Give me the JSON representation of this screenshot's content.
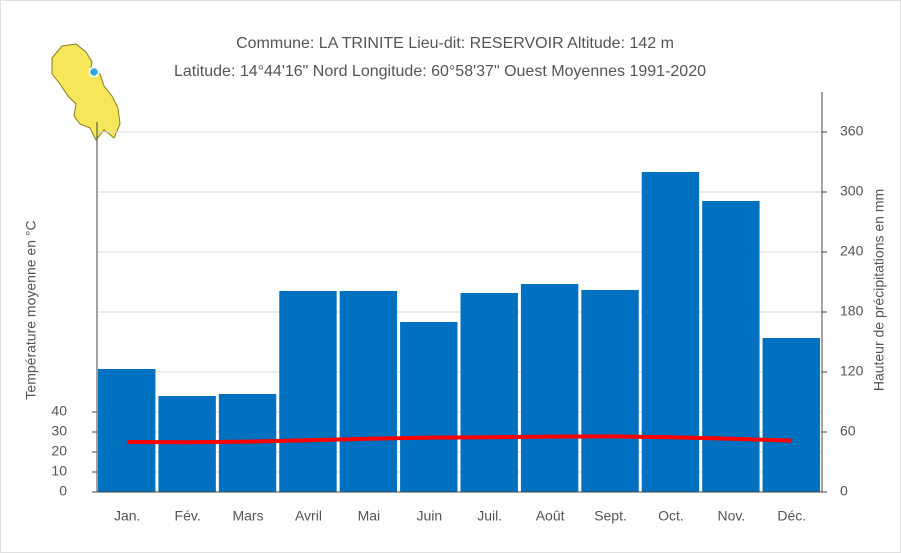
{
  "chart_data": {
    "type": "bar_line",
    "title": "Commune: LA TRINITE Lieu-dit: RESERVOIR Altitude: 142 m",
    "subtitle": "Latitude: 14°44'16\" Nord Longitude: 60°58'37\" Ouest Moyennes 1991-2020",
    "ylabel": "Température moyenne en °C",
    "y2label": "Hauteur de précipitations en mm",
    "categories": [
      "Jan.",
      "Fév.",
      "Mars",
      "Avril",
      "Mai",
      "Juin",
      "Juil.",
      "Août",
      "Sept.",
      "Oct.",
      "Nov.",
      "Déc."
    ],
    "series": [
      {
        "name": "Précipitations",
        "type": "bar",
        "axis": "y2",
        "color": "#0070c0",
        "values": [
          123,
          96,
          98,
          201,
          201,
          170,
          199,
          208,
          202,
          320,
          291,
          154
        ]
      },
      {
        "name": "Température",
        "type": "line",
        "axis": "y",
        "color": "#ff0000",
        "values": [
          25.0,
          24.9,
          25.2,
          25.9,
          26.6,
          27.2,
          27.4,
          27.7,
          27.8,
          27.4,
          26.6,
          25.7
        ]
      }
    ],
    "ylim": [
      0,
      200
    ],
    "yticks": [
      0,
      10,
      20,
      30,
      40
    ],
    "y2lim": [
      0,
      400
    ],
    "y2ticks": [
      0,
      60,
      120,
      180,
      240,
      300,
      360
    ],
    "grid": true
  }
}
